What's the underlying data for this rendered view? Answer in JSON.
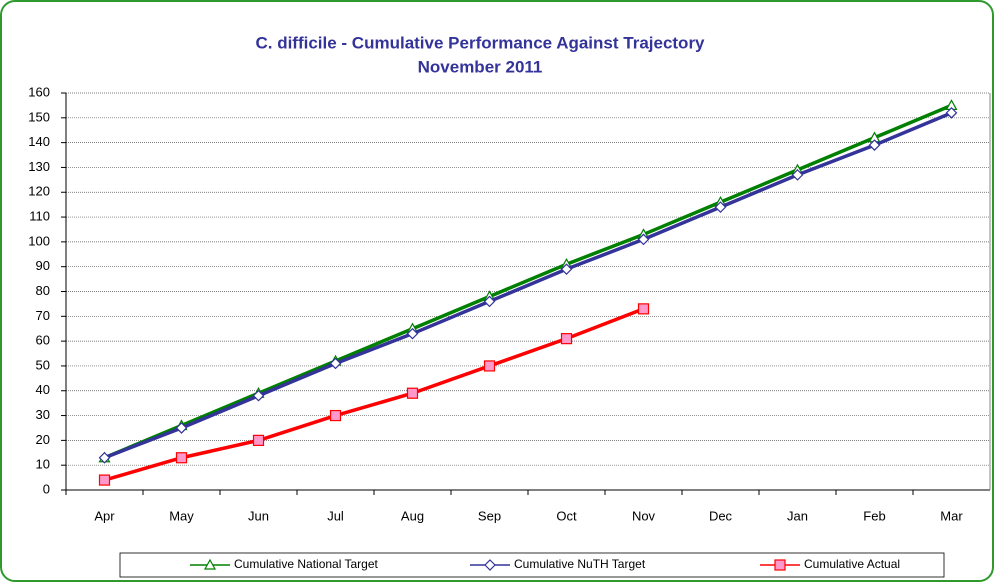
{
  "chart_data": {
    "type": "line",
    "title": "C. difficile - Cumulative Performance Against Trajectory",
    "subtitle": "November 2011",
    "categories": [
      "Apr",
      "May",
      "Jun",
      "Jul",
      "Aug",
      "Sep",
      "Oct",
      "Nov",
      "Dec",
      "Jan",
      "Feb",
      "Mar"
    ],
    "series": [
      {
        "name": "Cumulative National Target",
        "color": "#008000",
        "marker": "triangle",
        "values": [
          13,
          26,
          39,
          52,
          65,
          78,
          91,
          103,
          116,
          129,
          142,
          155
        ]
      },
      {
        "name": "Cumulative NuTH Target",
        "color": "#333399",
        "marker": "diamond",
        "values": [
          13,
          25,
          38,
          51,
          63,
          76,
          89,
          101,
          114,
          127,
          139,
          152
        ]
      },
      {
        "name": "Cumulative Actual",
        "color": "#ff0000",
        "marker": "square",
        "values": [
          4,
          13,
          20,
          30,
          39,
          50,
          61,
          73,
          null,
          null,
          null,
          null
        ]
      }
    ],
    "ylim": [
      0,
      160
    ],
    "yticks": [
      0,
      10,
      20,
      30,
      40,
      50,
      60,
      70,
      80,
      90,
      100,
      110,
      120,
      130,
      140,
      150,
      160
    ],
    "grid": true,
    "legend": "bottom"
  }
}
